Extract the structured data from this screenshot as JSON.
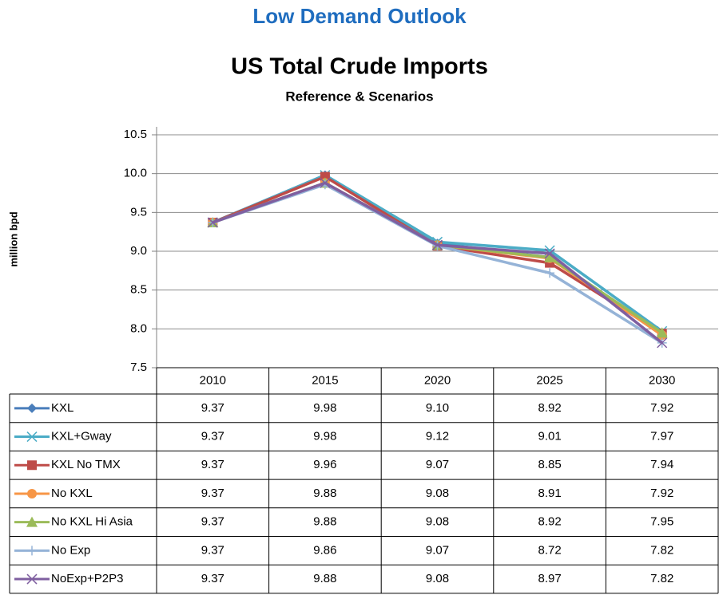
{
  "chart_data": {
    "type": "line",
    "heading": "Low Demand Outlook",
    "title": "US Total Crude Imports",
    "subtitle": "Reference & Scenarios",
    "y_label": "million bpd",
    "categories": [
      "2010",
      "2015",
      "2020",
      "2025",
      "2030"
    ],
    "ylim": [
      7.5,
      10.5
    ],
    "yticks": [
      7.5,
      {
        "value": 8,
        "label": "8.0"
      },
      8.5,
      {
        "value": 9,
        "label": "9.0"
      },
      9.5,
      {
        "value": 10,
        "label": "10.0"
      },
      10.5
    ],
    "grid": true,
    "data_table": true,
    "series": [
      {
        "name": "KXL",
        "color": "#4a7ebb",
        "marker": "diamond",
        "values": [
          9.37,
          9.98,
          9.1,
          8.92,
          7.92
        ],
        "value_labels": [
          "9.37",
          "9.98",
          "9.10",
          "8.92",
          "7.92"
        ]
      },
      {
        "name": "KXL+Gway",
        "color": "#4bacc6",
        "marker": "star",
        "values": [
          9.37,
          9.98,
          9.12,
          9.01,
          7.97
        ]
      },
      {
        "name": "KXL No TMX",
        "color": "#be4b48",
        "marker": "square",
        "values": [
          9.37,
          9.96,
          9.07,
          8.85,
          7.94
        ]
      },
      {
        "name": "No KXL",
        "color": "#f79646",
        "marker": "circle",
        "values": [
          9.37,
          9.88,
          9.08,
          8.91,
          7.92
        ]
      },
      {
        "name": "No KXL Hi Asia",
        "color": "#9bbb59",
        "marker": "triangle",
        "values": [
          9.37,
          9.88,
          9.08,
          8.92,
          7.95
        ]
      },
      {
        "name": "No Exp",
        "color": "#95b3d7",
        "marker": "plus",
        "values": [
          9.37,
          9.86,
          9.07,
          8.72,
          7.82
        ]
      },
      {
        "name": "NoExp+P2P3",
        "color": "#7f5fa0",
        "marker": "cross",
        "values": [
          9.37,
          9.88,
          9.08,
          8.97,
          7.82
        ]
      }
    ]
  }
}
